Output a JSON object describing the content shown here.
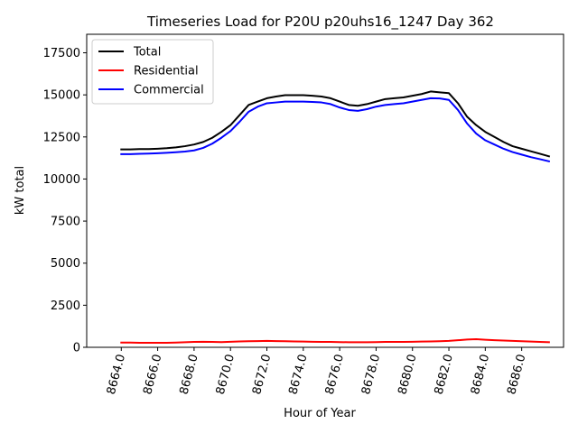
{
  "chart_data": {
    "type": "line",
    "title": "Timeseries Load for P20U p20uhs16_1247  Day 362",
    "xlabel": "Hour of Year",
    "ylabel": "kW total",
    "xlim": [
      8662.1,
      8688.3
    ],
    "ylim": [
      0,
      18600
    ],
    "x_ticks": [
      8664.0,
      8666.0,
      8668.0,
      8670.0,
      8672.0,
      8674.0,
      8676.0,
      8678.0,
      8680.0,
      8682.0,
      8684.0,
      8686.0
    ],
    "x_tick_labels": [
      "8664.0",
      "8666.0",
      "8668.0",
      "8670.0",
      "8672.0",
      "8674.0",
      "8676.0",
      "8678.0",
      "8680.0",
      "8682.0",
      "8684.0",
      "8686.0"
    ],
    "y_ticks": [
      0,
      2500,
      5000,
      7500,
      10000,
      12500,
      15000,
      17500
    ],
    "y_tick_labels": [
      "0",
      "2500",
      "5000",
      "7500",
      "10000",
      "12500",
      "15000",
      "17500"
    ],
    "legend_position": "top-left",
    "x": [
      8664.0,
      8664.5,
      8665.0,
      8665.5,
      8666.0,
      8666.5,
      8667.0,
      8667.5,
      8668.0,
      8668.5,
      8669.0,
      8669.5,
      8670.0,
      8670.5,
      8671.0,
      8671.5,
      8672.0,
      8672.5,
      8673.0,
      8673.5,
      8674.0,
      8674.5,
      8675.0,
      8675.5,
      8676.0,
      8676.5,
      8677.0,
      8677.5,
      8678.0,
      8678.5,
      8679.0,
      8679.5,
      8680.0,
      8680.5,
      8681.0,
      8681.5,
      8682.0,
      8682.5,
      8683.0,
      8683.5,
      8684.0,
      8684.5,
      8685.0,
      8685.5,
      8686.0,
      8686.5,
      8687.0,
      8687.5
    ],
    "series": [
      {
        "name": "Total",
        "color": "#000000",
        "values": [
          11760,
          11760,
          11780,
          11780,
          11800,
          11830,
          11880,
          11950,
          12050,
          12200,
          12450,
          12800,
          13200,
          13800,
          14400,
          14600,
          14800,
          14900,
          14980,
          14980,
          14980,
          14950,
          14900,
          14800,
          14600,
          14400,
          14350,
          14450,
          14600,
          14750,
          14800,
          14850,
          14950,
          15050,
          15200,
          15150,
          15100,
          14500,
          13700,
          13200,
          12800,
          12500,
          12200,
          11950,
          11800,
          11650,
          11500,
          11350
        ]
      },
      {
        "name": "Residential",
        "color": "#ff0000",
        "values": [
          280,
          280,
          270,
          270,
          270,
          270,
          280,
          300,
          320,
          330,
          320,
          310,
          330,
          350,
          360,
          370,
          380,
          370,
          360,
          350,
          340,
          330,
          320,
          320,
          310,
          300,
          300,
          300,
          310,
          320,
          320,
          320,
          330,
          340,
          350,
          360,
          380,
          420,
          460,
          480,
          450,
          420,
          400,
          380,
          360,
          340,
          320,
          300
        ]
      },
      {
        "name": "Commercial",
        "color": "#0000ff",
        "values": [
          11480,
          11480,
          11500,
          11510,
          11530,
          11560,
          11590,
          11630,
          11700,
          11850,
          12100,
          12450,
          12850,
          13400,
          14000,
          14300,
          14500,
          14550,
          14600,
          14600,
          14600,
          14580,
          14550,
          14450,
          14250,
          14100,
          14050,
          14150,
          14300,
          14400,
          14450,
          14500,
          14600,
          14700,
          14800,
          14790,
          14700,
          14100,
          13300,
          12700,
          12300,
          12050,
          11800,
          11600,
          11450,
          11300,
          11180,
          11050
        ]
      }
    ]
  }
}
